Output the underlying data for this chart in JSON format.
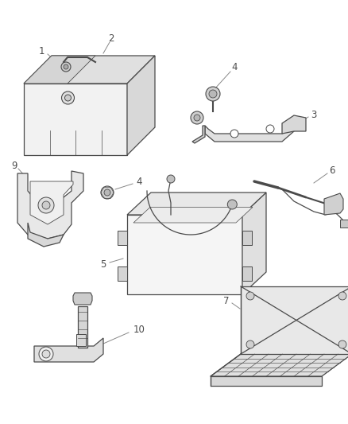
{
  "background_color": "#ffffff",
  "line_color": "#4a4a4a",
  "label_color": "#333333",
  "fig_width": 4.38,
  "fig_height": 5.33,
  "dpi": 100
}
